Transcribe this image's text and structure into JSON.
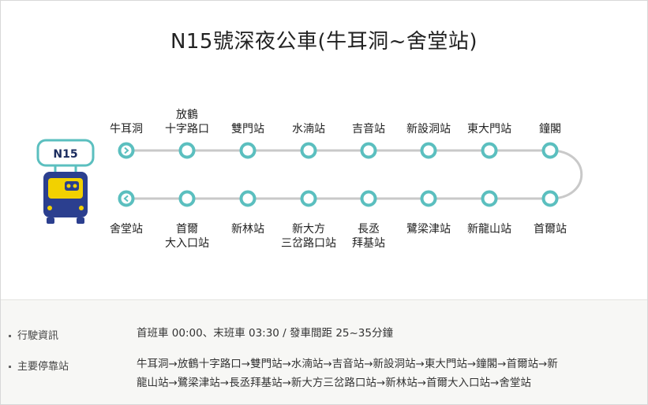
{
  "title": "N15號深夜公車(牛耳洞~舍堂站)",
  "route_badge": "N15",
  "colors": {
    "line": "#c9c9c9",
    "stop": "#5bbfbf",
    "bus_body": "#2b3f8f",
    "bus_window": "#f2d100"
  },
  "top_stops": [
    {
      "line1": "牛耳洞",
      "line2": "",
      "arrow": true
    },
    {
      "line1": "放鶴",
      "line2": "十字路口",
      "arrow": false
    },
    {
      "line1": "雙門站",
      "line2": "",
      "arrow": false
    },
    {
      "line1": "水湳站",
      "line2": "",
      "arrow": false
    },
    {
      "line1": "吉音站",
      "line2": "",
      "arrow": false
    },
    {
      "line1": "新設洞站",
      "line2": "",
      "arrow": false
    },
    {
      "line1": "東大門站",
      "line2": "",
      "arrow": false
    },
    {
      "line1": "鐘閣",
      "line2": "",
      "arrow": false
    }
  ],
  "bottom_stops": [
    {
      "line1": "舍堂站",
      "line2": "",
      "arrow": true
    },
    {
      "line1": "首爾",
      "line2": "大入口站",
      "arrow": false
    },
    {
      "line1": "新林站",
      "line2": "",
      "arrow": false
    },
    {
      "line1": "新大方",
      "line2": "三岔路口站",
      "arrow": false
    },
    {
      "line1": "長丞",
      "line2": "拜基站",
      "arrow": false
    },
    {
      "line1": "鷺梁津站",
      "line2": "",
      "arrow": false
    },
    {
      "line1": "新龍山站",
      "line2": "",
      "arrow": false
    },
    {
      "line1": "首爾站",
      "line2": "",
      "arrow": false
    }
  ],
  "info": {
    "operation_label": "行駛資訊",
    "operation_value": "首班車 00:00、末班車 03:30 / 發車間距 25~35分鐘",
    "stops_label": "主要停靠站",
    "stops_value_line1": "牛耳洞→放鶴十字路口→雙門站→水湳站→吉音站→新設洞站→東大門站→鐘閣→首爾站→新",
    "stops_value_line2": "龍山站→鷺梁津站→長丞拜基站→新大方三岔路口站→新林站→首爾大入口站→舍堂站"
  }
}
